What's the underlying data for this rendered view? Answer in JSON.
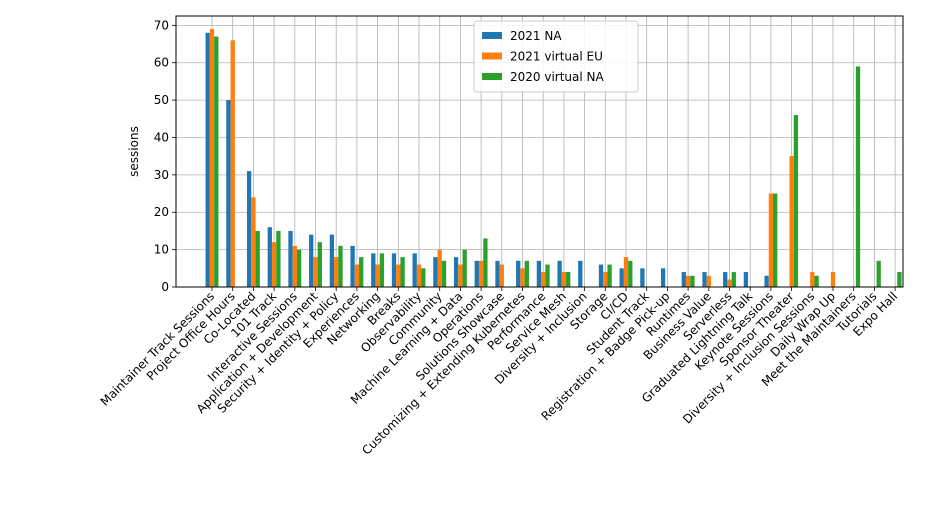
{
  "chart_data": {
    "type": "bar",
    "title": "",
    "xlabel": "",
    "ylabel": "sessions",
    "ylim": [
      0,
      72.5
    ],
    "yticks": [
      0,
      10,
      20,
      30,
      40,
      50,
      60,
      70
    ],
    "grid": true,
    "legend_position": "top-center",
    "categories": [
      "Maintainer Track Sessions",
      "Project Office Hours",
      "Co-Located",
      "101 Track",
      "Interactive Sessions",
      "Application + Development",
      "Security + Identity + Policy",
      "Experiences",
      "Networking",
      "Breaks",
      "Observability",
      "Community",
      "Machine Learning + Data",
      "Operations",
      "Solutions Showcase",
      "Customizing + Extending Kubernetes",
      "Performance",
      "Service Mesh",
      "Diversity + Inclusion",
      "Storage",
      "CI/CD",
      "Student Track",
      "Registration + Badge Pick-up",
      "Runtimes",
      "Business Value",
      "Serverless",
      "Graduated Lightning Talk",
      "Keynote Sessions",
      "Sponsor Theater",
      "Diversity + Inclusion Sessions",
      "Daily Wrap Up",
      "Meet the Maintainers",
      "Tutorials",
      "Expo Hall"
    ],
    "series": [
      {
        "name": "2021 NA",
        "color": "#1f77b4",
        "values": [
          68,
          50,
          31,
          16,
          15,
          14,
          14,
          11,
          9,
          9,
          9,
          8,
          8,
          7,
          7,
          7,
          7,
          7,
          7,
          6,
          5,
          5,
          5,
          4,
          4,
          4,
          4,
          3,
          0,
          0,
          0,
          0,
          0,
          0
        ]
      },
      {
        "name": "2021 virtual EU",
        "color": "#ff7f0e",
        "values": [
          69,
          66,
          24,
          12,
          11,
          8,
          8,
          6,
          6,
          6,
          6,
          10,
          6,
          7,
          6,
          5,
          4,
          4,
          0,
          4,
          8,
          0,
          0,
          3,
          3,
          2,
          0,
          25,
          35,
          4,
          4,
          0,
          0,
          0
        ]
      },
      {
        "name": "2020 virtual NA",
        "color": "#2ca02c",
        "values": [
          67,
          0,
          15,
          15,
          10,
          12,
          11,
          8,
          9,
          8,
          5,
          7,
          10,
          13,
          0,
          7,
          6,
          4,
          0,
          6,
          7,
          0,
          0,
          3,
          0,
          4,
          0,
          25,
          46,
          3,
          0,
          59,
          7,
          4
        ]
      }
    ]
  }
}
